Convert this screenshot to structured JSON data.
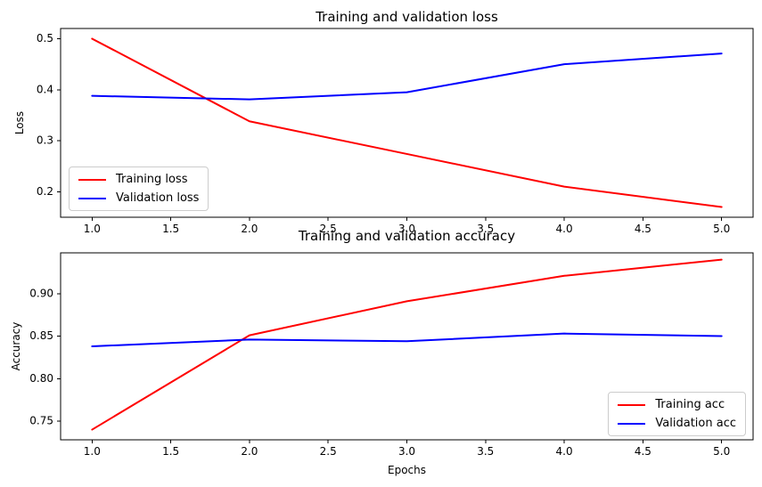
{
  "chart_data": [
    {
      "type": "line",
      "title": "Training and validation loss",
      "xlabel": "",
      "ylabel": "Loss",
      "x": [
        1,
        2,
        3,
        4,
        5
      ],
      "series": [
        {
          "name": "Training loss",
          "color": "#ff0000",
          "values": [
            0.5,
            0.338,
            0.274,
            0.21,
            0.17
          ]
        },
        {
          "name": "Validation loss",
          "color": "#0000ff",
          "values": [
            0.388,
            0.381,
            0.395,
            0.45,
            0.471
          ]
        }
      ],
      "xlim": [
        0.8,
        5.2
      ],
      "ylim": [
        0.15,
        0.52
      ],
      "xticks": [
        1.0,
        1.5,
        2.0,
        2.5,
        3.0,
        3.5,
        4.0,
        4.5,
        5.0
      ],
      "xtick_labels": [
        "1.0",
        "1.5",
        "2.0",
        "2.5",
        "3.0",
        "3.5",
        "4.0",
        "4.5",
        "5.0"
      ],
      "yticks": [
        0.2,
        0.3,
        0.4,
        0.5
      ],
      "ytick_labels": [
        "0.2",
        "0.3",
        "0.4",
        "0.5"
      ],
      "legend_position": "lower left",
      "grid": false
    },
    {
      "type": "line",
      "title": "Training and validation accuracy",
      "xlabel": "Epochs",
      "ylabel": "Accuracy",
      "x": [
        1,
        2,
        3,
        4,
        5
      ],
      "series": [
        {
          "name": "Training acc",
          "color": "#ff0000",
          "values": [
            0.74,
            0.851,
            0.891,
            0.921,
            0.94
          ]
        },
        {
          "name": "Validation acc",
          "color": "#0000ff",
          "values": [
            0.838,
            0.846,
            0.844,
            0.853,
            0.85
          ]
        }
      ],
      "xlim": [
        0.8,
        5.2
      ],
      "ylim": [
        0.728,
        0.948
      ],
      "xticks": [
        1.0,
        1.5,
        2.0,
        2.5,
        3.0,
        3.5,
        4.0,
        4.5,
        5.0
      ],
      "xtick_labels": [
        "1.0",
        "1.5",
        "2.0",
        "2.5",
        "3.0",
        "3.5",
        "4.0",
        "4.5",
        "5.0"
      ],
      "yticks": [
        0.75,
        0.8,
        0.85,
        0.9
      ],
      "ytick_labels": [
        "0.75",
        "0.80",
        "0.85",
        "0.90"
      ],
      "legend_position": "lower right",
      "grid": false
    }
  ]
}
